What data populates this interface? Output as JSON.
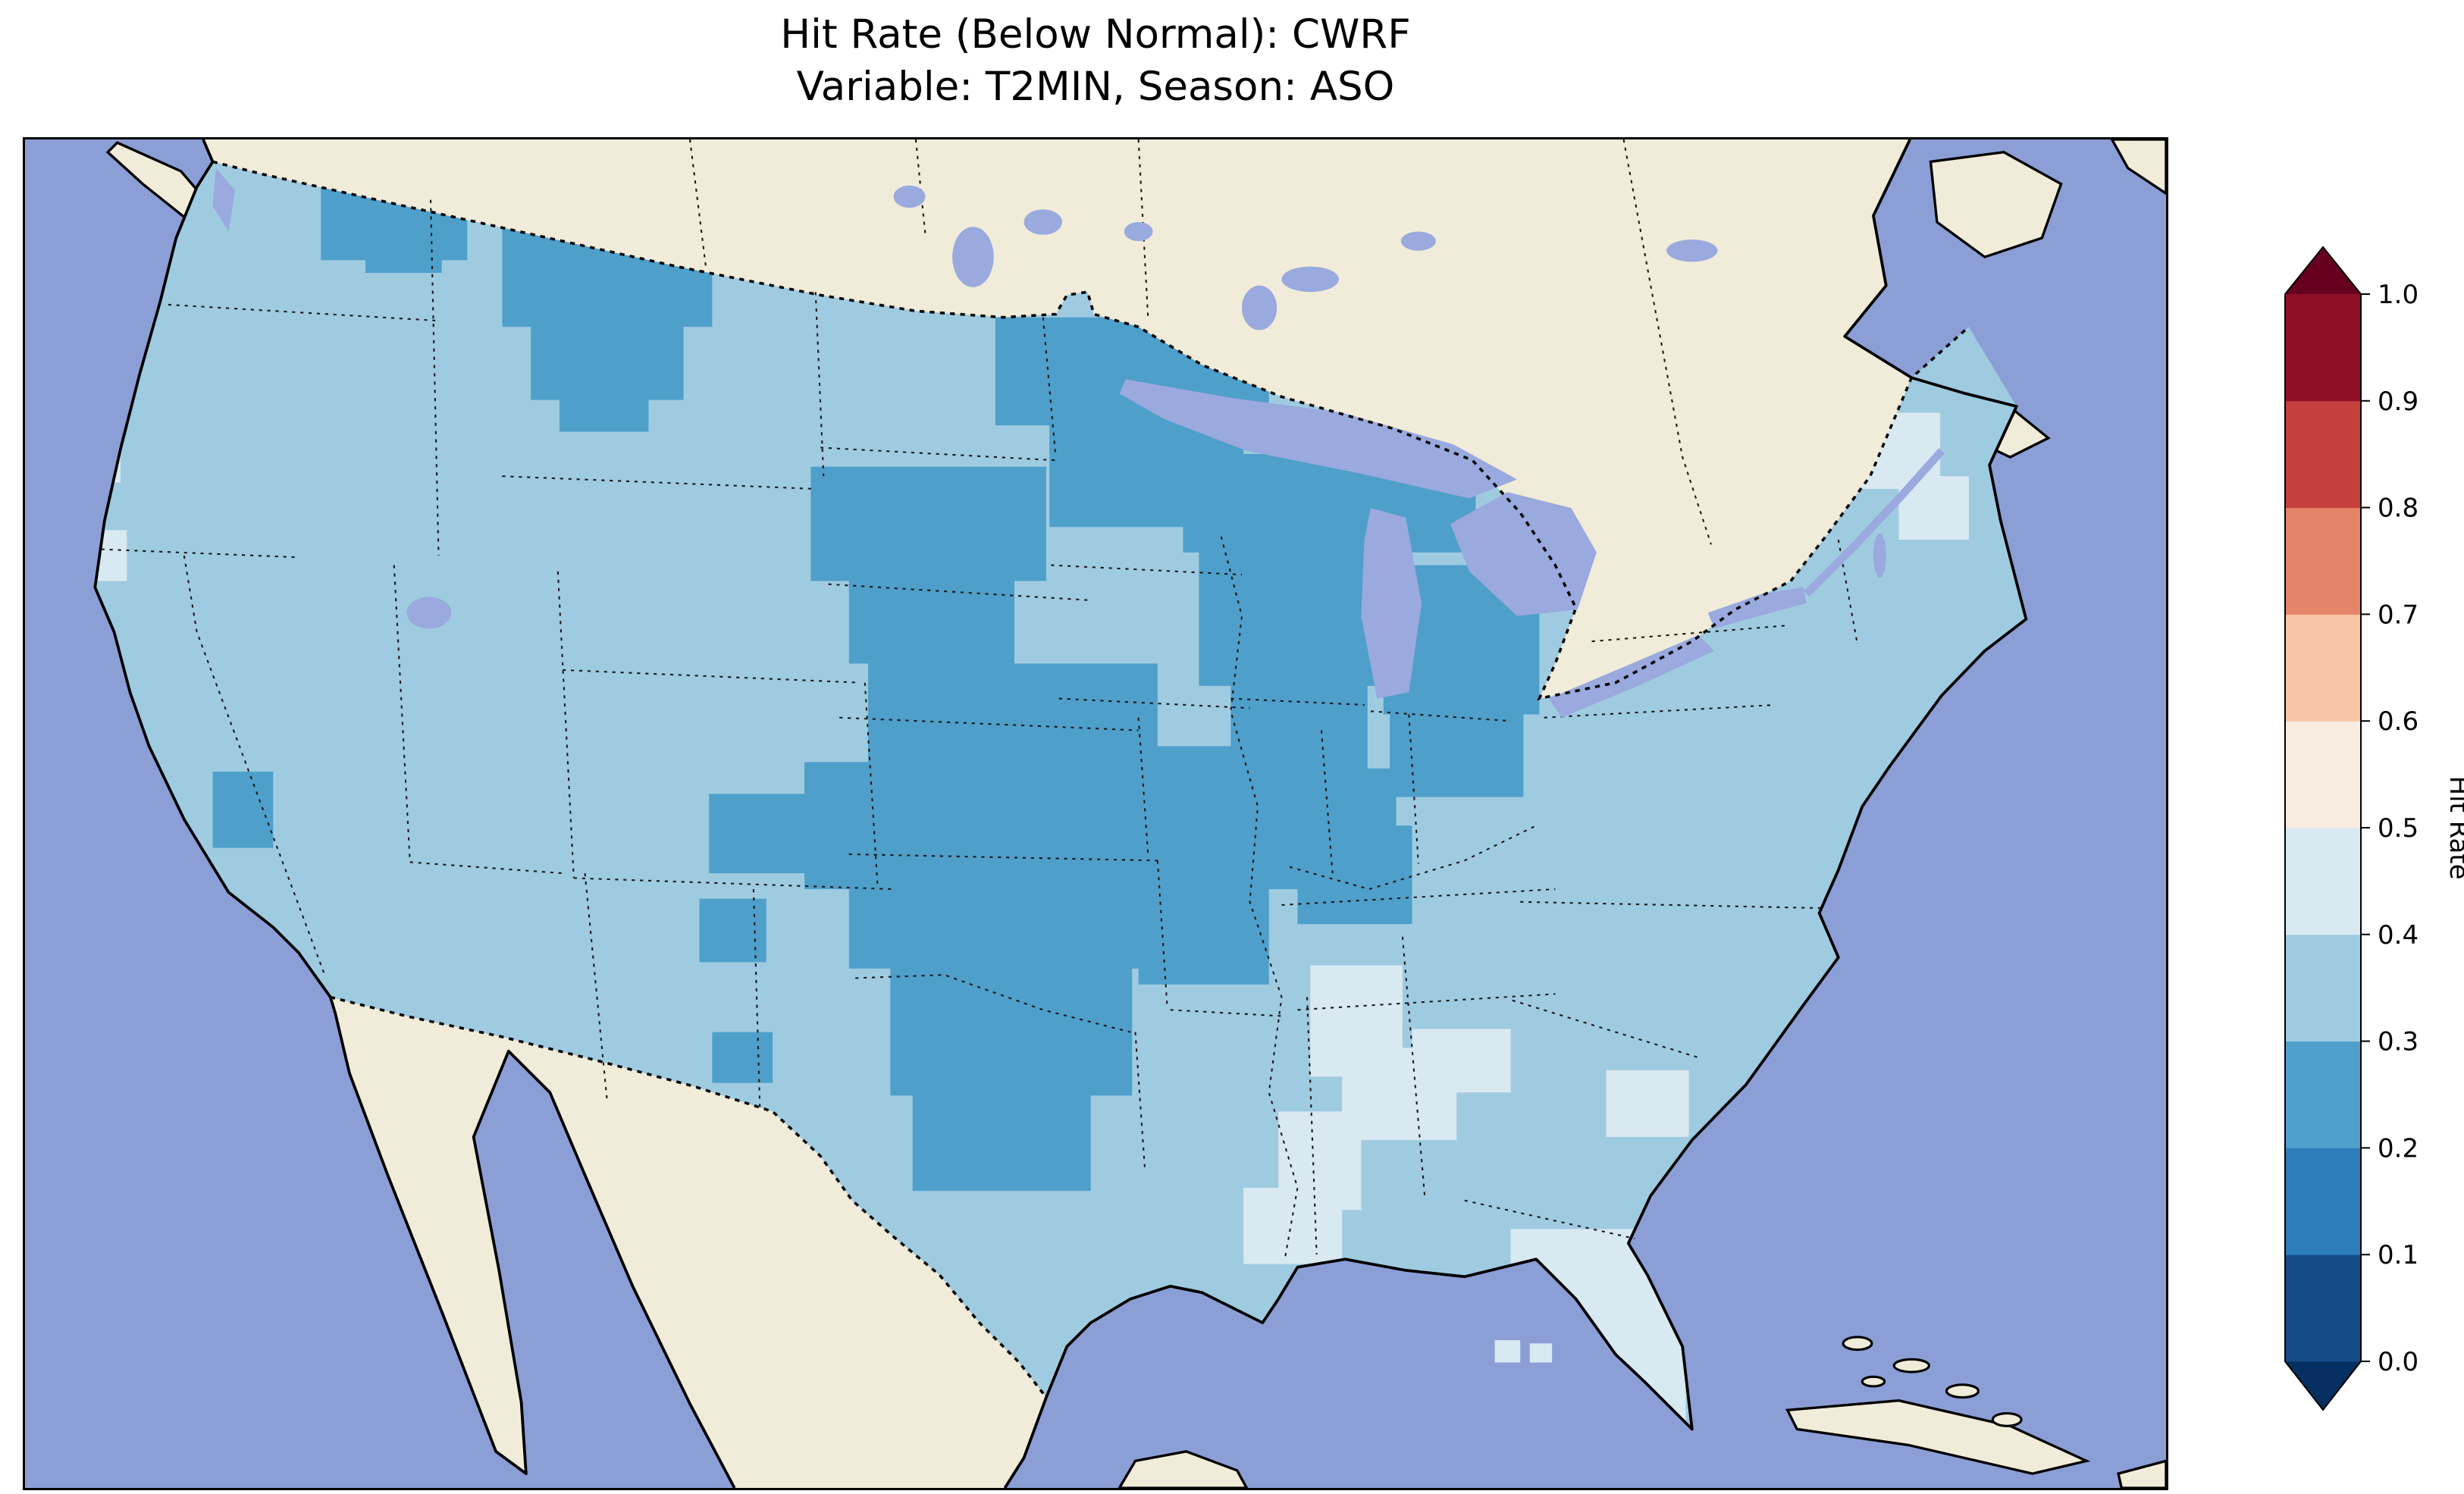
{
  "title": {
    "line1": "Hit Rate (Below Normal): CWRF",
    "line2": "Variable: T2MIN, Season: ASO"
  },
  "colorbar": {
    "label": "Hit Rate",
    "ticks": [
      "0.0",
      "0.1",
      "0.2",
      "0.3",
      "0.4",
      "0.5",
      "0.6",
      "0.7",
      "0.8",
      "0.9",
      "1.0"
    ],
    "bin_colors": [
      "#134b86",
      "#2d7dbb",
      "#4f9fcb",
      "#9fcbe1",
      "#d9e9f1",
      "#f9ece1",
      "#f8c5a6",
      "#e6846a",
      "#c53f3d",
      "#8e0e26"
    ],
    "under_color": "#053061",
    "over_color": "#67001f",
    "orientation": "vertical"
  },
  "map": {
    "colors": {
      "ocean": "#8c9ed6",
      "land": "#f0ecd9",
      "lake": "#9aa9de",
      "coast": "#000000",
      "border_dotted": "#000000",
      "state_dotted": "#1a1a1a"
    },
    "base_color_index": 3
  },
  "chart_data": {
    "type": "heatmap",
    "title": "Hit Rate (Below Normal): CWRF",
    "subtitle": "Variable: T2MIN, Season: ASO",
    "variable": "T2MIN",
    "season": "ASO",
    "model": "CWRF",
    "metric": "Hit Rate (Below Normal)",
    "colorbar_label": "Hit Rate",
    "value_range": [
      0.0,
      1.0
    ],
    "bins": [
      "0.0-0.1",
      "0.1-0.2",
      "0.2-0.3",
      "0.3-0.4",
      "0.4-0.5",
      "0.5-0.6",
      "0.6-0.7",
      "0.7-0.8",
      "0.8-0.9",
      "0.9-1.0"
    ],
    "regions": [
      {
        "region": "Most of the contiguous United States",
        "hit_rate_bin": "0.3-0.4"
      },
      {
        "region": "Northern Washington and western Montana",
        "hit_rate_bin": "0.2-0.3"
      },
      {
        "region": "Minnesota, Wisconsin, Michigan and the Dakotas",
        "hit_rate_bin": "0.2-0.3"
      },
      {
        "region": "Nebraska, Kansas, eastern Colorado, Oklahoma, north Texas",
        "hit_rate_bin": "0.2-0.3"
      },
      {
        "region": "Missouri, Illinois, Indiana patches",
        "hit_rate_bin": "0.2-0.3"
      },
      {
        "region": "Small patches in Nevada and New Mexico",
        "hit_rate_bin": "0.2-0.3"
      },
      {
        "region": "Florida peninsula",
        "hit_rate_bin": "0.4-0.5"
      },
      {
        "region": "Patches in Alabama, Georgia, Mississippi, Louisiana",
        "hit_rate_bin": "0.4-0.5"
      },
      {
        "region": "Small patches in northern Maine and the Oregon coast",
        "hit_rate_bin": "0.4-0.5"
      }
    ],
    "patch_groups": [
      {
        "bin": "0.2-0.3",
        "color_index": 2,
        "rects": [
          [
            186,
            28,
            92,
            48
          ],
          [
            214,
            64,
            48,
            20
          ],
          [
            300,
            56,
            132,
            62
          ],
          [
            318,
            112,
            96,
            52
          ],
          [
            336,
            158,
            56,
            26
          ],
          [
            610,
            112,
            172,
            68
          ],
          [
            644,
            172,
            122,
            72
          ],
          [
            694,
            92,
            44,
            26
          ],
          [
            728,
            198,
            184,
            62
          ],
          [
            738,
            252,
            114,
            92
          ],
          [
            758,
            336,
            86,
            68
          ],
          [
            854,
            268,
            98,
            94
          ],
          [
            858,
            356,
            84,
            58
          ],
          [
            494,
            206,
            148,
            72
          ],
          [
            518,
            270,
            104,
            60
          ],
          [
            530,
            330,
            182,
            92
          ],
          [
            490,
            392,
            122,
            80
          ],
          [
            430,
            412,
            82,
            50
          ],
          [
            518,
            420,
            224,
            102
          ],
          [
            544,
            514,
            152,
            88
          ],
          [
            558,
            596,
            112,
            66
          ],
          [
            688,
            382,
            98,
            90
          ],
          [
            700,
            452,
            82,
            80
          ],
          [
            774,
            396,
            88,
            76
          ],
          [
            800,
            432,
            72,
            62
          ],
          [
            118,
            398,
            38,
            48
          ],
          [
            424,
            478,
            42,
            40
          ],
          [
            432,
            562,
            38,
            32
          ]
        ]
      },
      {
        "bin": "0.4-0.5",
        "color_index": 4,
        "rects": [
          [
            934,
            686,
            118,
            74
          ],
          [
            952,
            748,
            92,
            58
          ],
          [
            808,
            520,
            58,
            70
          ],
          [
            828,
            572,
            72,
            58
          ],
          [
            788,
            612,
            52,
            62
          ],
          [
            766,
            660,
            62,
            48
          ],
          [
            872,
            560,
            62,
            40
          ],
          [
            994,
            586,
            52,
            42
          ],
          [
            38,
            180,
            22,
            36
          ],
          [
            44,
            246,
            20,
            32
          ],
          [
            1142,
            172,
            62,
            48
          ],
          [
            1178,
            212,
            44,
            40
          ]
        ]
      }
    ],
    "stray_cells": [
      [
        924,
        756,
        16,
        14,
        4
      ],
      [
        946,
        758,
        14,
        12,
        4
      ],
      [
        598,
        860,
        16,
        14,
        3
      ]
    ],
    "legend_position": "right",
    "grid": false
  }
}
